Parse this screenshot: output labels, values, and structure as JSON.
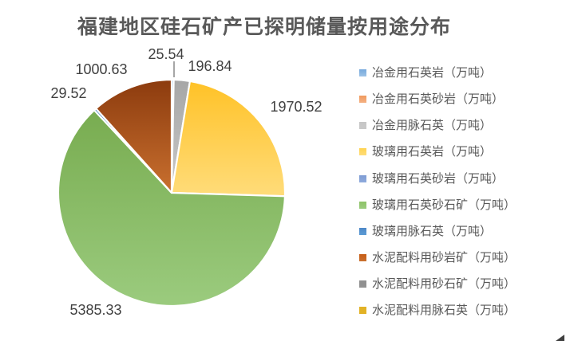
{
  "chart": {
    "title": "福建地区硅石矿产已探明储量按用途分布"
  },
  "chart_data": {
    "type": "pie",
    "title": "福建地区硅石矿产已探明储量按用途分布",
    "unit": "万吨",
    "legend_position": "right",
    "start_angle_deg": 0,
    "clockwise": true,
    "total": 8608.38,
    "series": [
      {
        "name": "冶金用石英岩（万吨）",
        "value": 25.54,
        "label": "25.54",
        "color": "#76A9DC",
        "gradient": [
          "#5B9BD5",
          "#9DC3E6"
        ]
      },
      {
        "name": "冶金用石英砂岩（万吨）",
        "value": 0,
        "label": "",
        "color": "#F09A5D",
        "gradient": [
          "#ED7D31",
          "#F4B183"
        ]
      },
      {
        "name": "冶金用脉石英（万吨）",
        "value": 196.84,
        "label": "196.84",
        "color": "#C6C6C6",
        "gradient": [
          "#A6A6A6",
          "#C9C9C9"
        ]
      },
      {
        "name": "玻璃用石英岩（万吨）",
        "value": 1970.52,
        "label": "1970.52",
        "color": "#FFD34F",
        "gradient": [
          "#FFC227",
          "#FFDC7A"
        ]
      },
      {
        "name": "玻璃用石英砂岩（万吨）",
        "value": 0,
        "label": "",
        "color": "#7E9CD4",
        "gradient": [
          "#4472C4",
          "#8FAADC"
        ]
      },
      {
        "name": "玻璃用石英砂石矿（万吨）",
        "value": 5385.33,
        "label": "5385.33",
        "color": "#8EC368",
        "gradient": [
          "#78AC50",
          "#9BCB7E"
        ]
      },
      {
        "name": "玻璃用脉石英（万吨）",
        "value": 29.52,
        "label": "29.52",
        "color": "#4E88C7",
        "gradient": [
          "#2E75B6",
          "#5B9BD5"
        ]
      },
      {
        "name": "水泥配料用砂岩矿（万吨）",
        "value": 1000.63,
        "label": "1000.63",
        "color": "#C75D15",
        "gradient": [
          "#8C3B0E",
          "#C9702F"
        ]
      },
      {
        "name": "水泥配料用砂石矿（万吨）",
        "value": 0,
        "label": "",
        "color": "#909090",
        "gradient": [
          "#636363",
          "#919191"
        ]
      },
      {
        "name": "水泥配料用脉石英（万吨）",
        "value": 0,
        "label": "",
        "color": "#E2B226",
        "gradient": [
          "#997300",
          "#E2B226"
        ]
      }
    ]
  },
  "colors": {
    "title": "#595959",
    "data_label": "#404040",
    "legend_text": "#595959",
    "leader_line": "#A6A6A6",
    "slice_border": "#FFFFFF",
    "background": "#FFFFFF"
  }
}
